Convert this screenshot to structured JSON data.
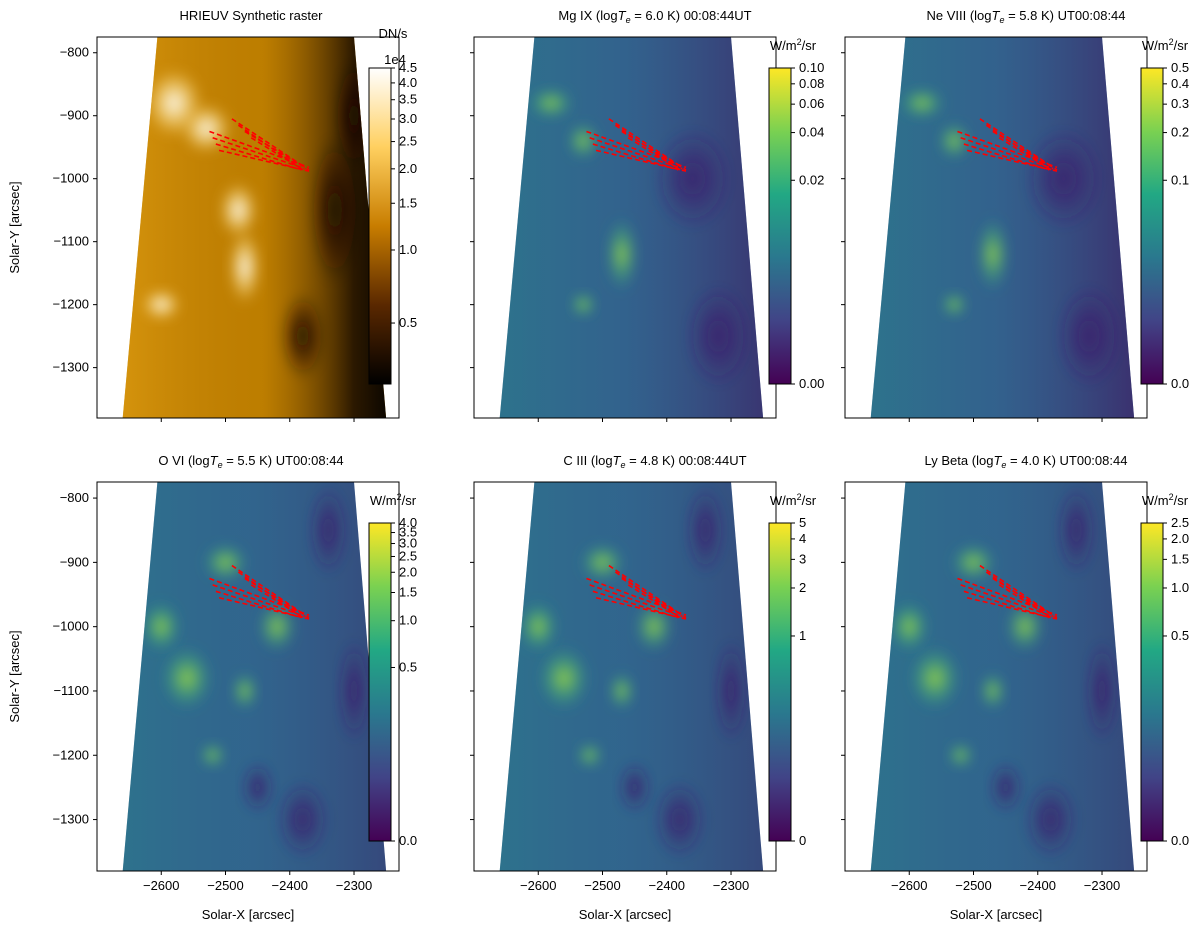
{
  "chart_data": [
    {
      "type": "heatmap",
      "title": "HRIEUV Synthetic raster",
      "xlabel": "",
      "ylabel": "Solar-Y [arcsec]",
      "xlim": [
        -2700,
        -2230
      ],
      "ylim": [
        -1380,
        -775
      ],
      "x_ticks": [],
      "y_ticks": [
        -800,
        -900,
        -1000,
        -1100,
        -1200,
        -1300
      ],
      "colormap": "afmhot",
      "colorbar": {
        "unit": "DN/s",
        "exponent": "1e4",
        "scale": "log",
        "range": [
          0.25,
          4.5
        ],
        "ticks": [
          0.5,
          1.0,
          1.5,
          2.0,
          2.5,
          3.0,
          3.5,
          4.0,
          4.5
        ],
        "tick_labels": [
          "0.5",
          "1.0",
          "1.5",
          "2.0",
          "2.5",
          "3.0",
          "3.5",
          "4.0",
          "4.5"
        ]
      },
      "overlay": {
        "color": "#ff0000",
        "style": "dashed",
        "count": 8
      }
    },
    {
      "type": "heatmap",
      "title": "Mg IX (logT_e = 6.0 K) 00:08:44UT",
      "xlabel": "",
      "ylabel": "",
      "xlim": [
        -2700,
        -2230
      ],
      "ylim": [
        -1380,
        -775
      ],
      "x_ticks": [],
      "y_ticks": [],
      "colormap": "viridis",
      "colorbar": {
        "unit": "W/m²/sr",
        "scale": "log",
        "range": [
          0.0,
          0.1
        ],
        "ticks": [
          0.0,
          0.02,
          0.04,
          0.06,
          0.08,
          0.1
        ],
        "tick_labels": [
          "0.00",
          "0.02",
          "0.04",
          "0.06",
          "0.08",
          "0.10"
        ]
      },
      "overlay": {
        "color": "#ff0000",
        "style": "dashed",
        "count": 8
      }
    },
    {
      "type": "heatmap",
      "title": "Ne VIII (logT_e = 5.8 K) UT00:08:44",
      "xlabel": "",
      "ylabel": "",
      "xlim": [
        -2700,
        -2230
      ],
      "ylim": [
        -1380,
        -775
      ],
      "x_ticks": [],
      "y_ticks": [],
      "colormap": "viridis",
      "colorbar": {
        "unit": "W/m²/sr",
        "scale": "log",
        "range": [
          0.0,
          0.5
        ],
        "ticks": [
          0.0,
          0.1,
          0.2,
          0.3,
          0.4,
          0.5
        ],
        "tick_labels": [
          "0.0",
          "0.1",
          "0.2",
          "0.3",
          "0.4",
          "0.5"
        ]
      },
      "overlay": {
        "color": "#ff0000",
        "style": "dashed",
        "count": 8
      }
    },
    {
      "type": "heatmap",
      "title": "O VI (logT_e = 5.5 K) UT00:08:44",
      "xlabel": "Solar-X [arcsec]",
      "ylabel": "Solar-Y [arcsec]",
      "xlim": [
        -2700,
        -2230
      ],
      "ylim": [
        -1380,
        -775
      ],
      "x_ticks": [
        -2600,
        -2500,
        -2400,
        -2300
      ],
      "y_ticks": [
        -800,
        -900,
        -1000,
        -1100,
        -1200,
        -1300
      ],
      "colormap": "viridis",
      "colorbar": {
        "unit": "W/m²/sr",
        "scale": "log",
        "range": [
          0.0,
          4.0
        ],
        "ticks": [
          0.0,
          0.5,
          1.0,
          1.5,
          2.0,
          2.5,
          3.0,
          3.5,
          4.0
        ],
        "tick_labels": [
          "0.0",
          "0.5",
          "1.0",
          "1.5",
          "2.0",
          "2.5",
          "3.0",
          "3.5",
          "4.0"
        ]
      },
      "overlay": {
        "color": "#ff0000",
        "style": "dashed",
        "count": 8
      }
    },
    {
      "type": "heatmap",
      "title": "C III (logT_e = 4.8 K) 00:08:44UT",
      "xlabel": "Solar-X [arcsec]",
      "ylabel": "",
      "xlim": [
        -2700,
        -2230
      ],
      "ylim": [
        -1380,
        -775
      ],
      "x_ticks": [
        -2600,
        -2500,
        -2400,
        -2300
      ],
      "y_ticks": [],
      "colormap": "viridis",
      "colorbar": {
        "unit": "W/m²/sr",
        "scale": "log",
        "range": [
          0,
          5
        ],
        "ticks": [
          0,
          1,
          2,
          3,
          4,
          5
        ],
        "tick_labels": [
          "0",
          "1",
          "2",
          "3",
          "4",
          "5"
        ]
      },
      "overlay": {
        "color": "#ff0000",
        "style": "dashed",
        "count": 8
      }
    },
    {
      "type": "heatmap",
      "title": "Ly Beta (logT_e = 4.0 K) UT00:08:44",
      "xlabel": "Solar-X [arcsec]",
      "ylabel": "",
      "xlim": [
        -2700,
        -2230
      ],
      "ylim": [
        -1380,
        -775
      ],
      "x_ticks": [
        -2600,
        -2500,
        -2400,
        -2300
      ],
      "y_ticks": [],
      "colormap": "viridis",
      "colorbar": {
        "unit": "W/m²/sr",
        "scale": "log",
        "range": [
          0.0,
          2.5
        ],
        "ticks": [
          0.0,
          0.5,
          1.0,
          1.5,
          2.0,
          2.5
        ],
        "tick_labels": [
          "0.0",
          "0.5",
          "1.0",
          "1.5",
          "2.0",
          "2.5"
        ]
      },
      "overlay": {
        "color": "#ff0000",
        "style": "dashed",
        "count": 8
      }
    }
  ]
}
